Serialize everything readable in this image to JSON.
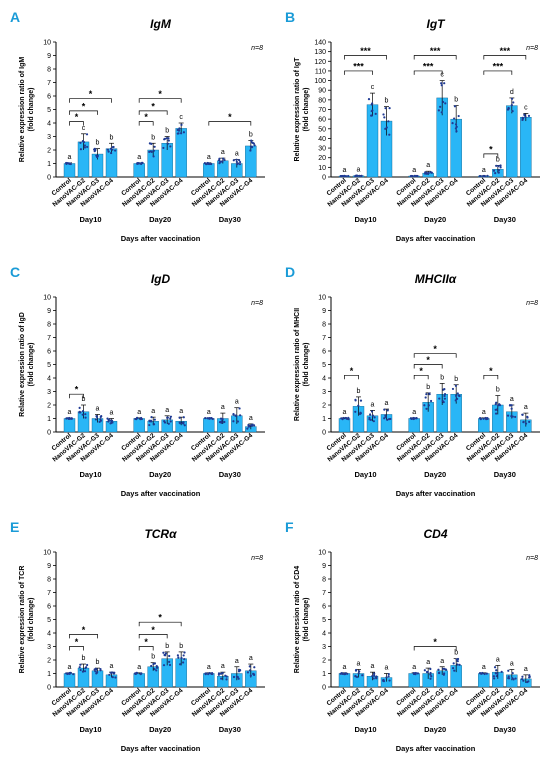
{
  "figure": {
    "xlabel": "Days after vaccination",
    "n_label": "n=8",
    "group_label_prefix": "Day",
    "treatments": [
      "Control",
      "NanoVAC-G2",
      "NanoVAC-G3",
      "NanoVAC-G4"
    ],
    "bar_color": "#29b6f6",
    "point_color": "#1f3a93"
  },
  "chart_data": [
    {
      "type": "bar",
      "panel": "A",
      "title": "IgM",
      "title_style": "italic",
      "ylabel": [
        "Relative expression ratio of IgM",
        "(fold change)"
      ],
      "ylim": [
        0,
        10
      ],
      "ystep": 1,
      "groups": [
        "10",
        "20",
        "30"
      ],
      "series": [
        {
          "values": [
            1.0,
            2.6,
            1.7,
            2.1
          ],
          "errors": [
            0.05,
            0.6,
            0.4,
            0.4
          ],
          "letters": [
            "a",
            "c",
            "b",
            "b"
          ]
        },
        {
          "values": [
            1.0,
            2.0,
            2.5,
            3.6
          ],
          "errors": [
            0.05,
            0.5,
            0.5,
            0.4
          ],
          "letters": [
            "a",
            "b",
            "b",
            "c"
          ]
        },
        {
          "values": [
            1.0,
            1.2,
            1.0,
            2.3
          ],
          "errors": [
            0.05,
            0.2,
            0.3,
            0.4
          ],
          "letters": [
            "a",
            "a",
            "a",
            "b"
          ]
        }
      ],
      "significance": [
        {
          "group": 0,
          "from": 0,
          "to": 1,
          "y": 4.1,
          "label": "*"
        },
        {
          "group": 0,
          "from": 0,
          "to": 2,
          "y": 4.9,
          "label": "*"
        },
        {
          "group": 0,
          "from": 0,
          "to": 3,
          "y": 5.8,
          "label": "*"
        },
        {
          "group": 1,
          "from": 0,
          "to": 1,
          "y": 4.1,
          "label": "*"
        },
        {
          "group": 1,
          "from": 0,
          "to": 2,
          "y": 4.9,
          "label": "*"
        },
        {
          "group": 1,
          "from": 0,
          "to": 3,
          "y": 5.8,
          "label": "*"
        },
        {
          "group": 2,
          "from": 0,
          "to": 3,
          "y": 4.1,
          "label": "*"
        }
      ]
    },
    {
      "type": "bar",
      "panel": "B",
      "title": "IgT",
      "title_style": "italic",
      "ylabel": [
        "Relative expression ratio of IgT",
        "(fold change)"
      ],
      "ylim": [
        0,
        140
      ],
      "ystep": 10,
      "groups": [
        "10",
        "20",
        "30"
      ],
      "series": [
        {
          "values": [
            1.0,
            1.2,
            75,
            58
          ],
          "errors": [
            0.2,
            0.3,
            12,
            15
          ],
          "letters": [
            "a",
            "a",
            "c",
            "b"
          ]
        },
        {
          "values": [
            1.0,
            4.0,
            82,
            60
          ],
          "errors": [
            0.2,
            2,
            18,
            14
          ],
          "letters": [
            "a",
            "a",
            "c",
            "b"
          ]
        },
        {
          "values": [
            1.0,
            8.0,
            74,
            62
          ],
          "errors": [
            0.2,
            4,
            8,
            4
          ],
          "letters": [
            "a",
            "b",
            "d",
            "c"
          ]
        }
      ],
      "significance": [
        {
          "group": 0,
          "from": 0,
          "to": 2,
          "y": 110,
          "label": "***"
        },
        {
          "group": 0,
          "from": 0,
          "to": 3,
          "y": 126,
          "label": "***"
        },
        {
          "group": 1,
          "from": 0,
          "to": 2,
          "y": 110,
          "label": "***"
        },
        {
          "group": 1,
          "from": 0,
          "to": 3,
          "y": 126,
          "label": "***"
        },
        {
          "group": 2,
          "from": 0,
          "to": 1,
          "y": 24,
          "label": "*"
        },
        {
          "group": 2,
          "from": 0,
          "to": 2,
          "y": 110,
          "label": "***"
        },
        {
          "group": 2,
          "from": 0,
          "to": 3,
          "y": 126,
          "label": "***"
        }
      ]
    },
    {
      "type": "bar",
      "panel": "C",
      "title": "IgD",
      "title_style": "italic",
      "ylabel": [
        "Relative expression ratio of IgD",
        "(fold change)"
      ],
      "ylim": [
        0,
        10
      ],
      "ystep": 1,
      "groups": [
        "10",
        "20",
        "30"
      ],
      "series": [
        {
          "values": [
            1.0,
            1.5,
            1.0,
            0.8
          ],
          "errors": [
            0.05,
            0.5,
            0.3,
            0.2
          ],
          "letters": [
            "a",
            "b",
            "a",
            "a"
          ]
        },
        {
          "values": [
            1.0,
            0.8,
            0.9,
            0.8
          ],
          "errors": [
            0.05,
            0.3,
            0.3,
            0.3
          ],
          "letters": [
            "a",
            "a",
            "a",
            "a"
          ]
        },
        {
          "values": [
            1.0,
            1.0,
            1.2,
            0.4
          ],
          "errors": [
            0.05,
            0.4,
            0.6,
            0.2
          ],
          "letters": [
            "a",
            "a",
            "a",
            "a"
          ]
        }
      ],
      "significance": [
        {
          "group": 0,
          "from": 0,
          "to": 1,
          "y": 2.8,
          "label": "*"
        }
      ]
    },
    {
      "type": "bar",
      "panel": "D",
      "title": "MHCIIα",
      "title_style": "italic",
      "ylabel": [
        "Relative expression ratio of MHCII",
        "(fold change)"
      ],
      "ylim": [
        0,
        10
      ],
      "ystep": 1,
      "groups": [
        "10",
        "20",
        "30"
      ],
      "series": [
        {
          "values": [
            1.0,
            1.9,
            1.2,
            1.3
          ],
          "errors": [
            0.05,
            0.7,
            0.4,
            0.4
          ],
          "letters": [
            "a",
            "b",
            "a",
            "a"
          ]
        },
        {
          "values": [
            1.0,
            2.2,
            2.8,
            2.8
          ],
          "errors": [
            0.05,
            0.7,
            0.8,
            0.7
          ],
          "letters": [
            "a",
            "b",
            "b",
            "b"
          ]
        },
        {
          "values": [
            1.0,
            2.0,
            1.5,
            0.9
          ],
          "errors": [
            0.05,
            0.7,
            0.5,
            0.5
          ],
          "letters": [
            "a",
            "b",
            "a",
            "a"
          ]
        }
      ],
      "significance": [
        {
          "group": 0,
          "from": 0,
          "to": 1,
          "y": 4.2,
          "label": "*"
        },
        {
          "group": 1,
          "from": 0,
          "to": 1,
          "y": 4.2,
          "label": "*"
        },
        {
          "group": 1,
          "from": 0,
          "to": 2,
          "y": 5.0,
          "label": "*"
        },
        {
          "group": 1,
          "from": 0,
          "to": 3,
          "y": 5.8,
          "label": "*"
        },
        {
          "group": 2,
          "from": 0,
          "to": 1,
          "y": 4.2,
          "label": "*"
        }
      ]
    },
    {
      "type": "bar",
      "panel": "E",
      "title": "TCRα",
      "title_style": "italic",
      "ylabel": [
        "Relative expression ratio of TCR",
        "(fold change)"
      ],
      "ylim": [
        0,
        10
      ],
      "ystep": 1,
      "groups": [
        "10",
        "20",
        "30"
      ],
      "series": [
        {
          "values": [
            1.0,
            1.4,
            1.2,
            0.9
          ],
          "errors": [
            0.05,
            0.3,
            0.2,
            0.2
          ],
          "letters": [
            "a",
            "b",
            "b",
            "a"
          ]
        },
        {
          "values": [
            1.0,
            1.5,
            2.1,
            2.1
          ],
          "errors": [
            0.05,
            0.3,
            0.5,
            0.5
          ],
          "letters": [
            "a",
            "b",
            "b",
            "b"
          ]
        },
        {
          "values": [
            1.0,
            0.8,
            1.0,
            1.2
          ],
          "errors": [
            0.05,
            0.3,
            0.5,
            0.5
          ],
          "letters": [
            "a",
            "a",
            "a",
            "a"
          ]
        }
      ],
      "significance": [
        {
          "group": 0,
          "from": 0,
          "to": 1,
          "y": 3.0,
          "label": "*"
        },
        {
          "group": 0,
          "from": 0,
          "to": 2,
          "y": 3.9,
          "label": "*"
        },
        {
          "group": 1,
          "from": 0,
          "to": 1,
          "y": 3.0,
          "label": "*"
        },
        {
          "group": 1,
          "from": 0,
          "to": 2,
          "y": 3.9,
          "label": "*"
        },
        {
          "group": 1,
          "from": 0,
          "to": 3,
          "y": 4.8,
          "label": "*"
        }
      ]
    },
    {
      "type": "bar",
      "panel": "F",
      "title": "CD4",
      "title_style": "italic",
      "ylabel": [
        "Relative expression ratio of CD4",
        "(fold change)"
      ],
      "ylim": [
        0,
        10
      ],
      "ystep": 1,
      "groups": [
        "10",
        "20",
        "30"
      ],
      "series": [
        {
          "values": [
            1.0,
            1.0,
            0.8,
            0.7
          ],
          "errors": [
            0.05,
            0.3,
            0.3,
            0.3
          ],
          "letters": [
            "a",
            "a",
            "a",
            "a"
          ]
        },
        {
          "values": [
            1.0,
            1.0,
            1.2,
            1.6
          ],
          "errors": [
            0.05,
            0.4,
            0.3,
            0.5
          ],
          "letters": [
            "a",
            "a",
            "a",
            "b"
          ]
        },
        {
          "values": [
            1.0,
            1.1,
            0.9,
            0.6
          ],
          "errors": [
            0.05,
            0.5,
            0.4,
            0.3
          ],
          "letters": [
            "a",
            "a",
            "a",
            "a"
          ]
        }
      ],
      "significance": [
        {
          "group": 1,
          "from": 0,
          "to": 3,
          "y": 3.0,
          "label": "*"
        }
      ]
    }
  ]
}
